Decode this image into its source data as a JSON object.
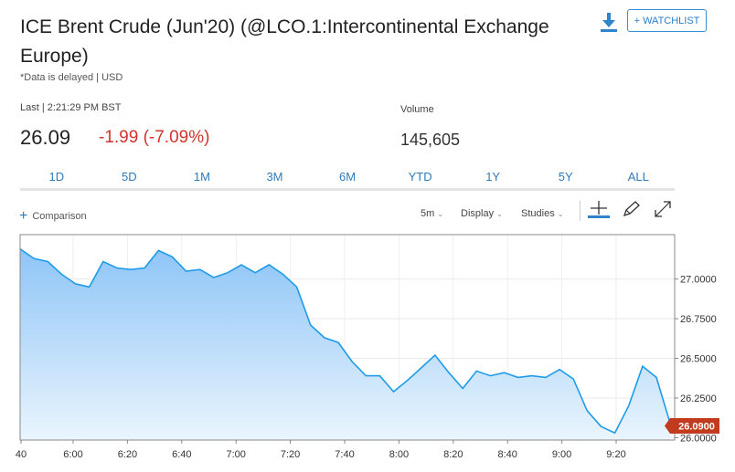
{
  "header": {
    "title": "ICE Brent Crude (Jun'20) (@LCO.1:Intercontinental Exchange Europe)",
    "delay_note": "*Data is delayed | USD",
    "download_icon": "download-icon",
    "watchlist_label": "+ WATCHLIST"
  },
  "quote": {
    "last_label": "Last | 2:21:29 PM BST",
    "price": "26.09",
    "change": "-1.99 (-7.09%)",
    "volume_label": "Volume",
    "volume": "145,605"
  },
  "colors": {
    "accent": "#2f7ab8",
    "down": "#d0342c",
    "line": "#1f9be8",
    "badge": "#c23b1f"
  },
  "ranges": [
    "1D",
    "5D",
    "1M",
    "3M",
    "6M",
    "YTD",
    "1Y",
    "5Y",
    "ALL"
  ],
  "toolbar": {
    "comparison_label": "Comparison",
    "interval_label": "5m",
    "display_label": "Display",
    "studies_label": "Studies",
    "icons": [
      "crosshair-icon",
      "draw-pencil-icon",
      "fullscreen-icon"
    ]
  },
  "chart_data": {
    "type": "area",
    "x_ticks": [
      "40",
      "6:00",
      "6:20",
      "6:40",
      "7:00",
      "7:20",
      "7:40",
      "8:00",
      "8:20",
      "8:40",
      "9:00",
      "9:20"
    ],
    "y_ticks": [
      "27.0000",
      "26.7500",
      "26.5000",
      "26.2500",
      "26.0000"
    ],
    "ylim": [
      25.985,
      27.28
    ],
    "y_axis_side": "right",
    "grid": true,
    "current_value_label": "26.0900",
    "series": [
      {
        "values": [
          27.19,
          27.13,
          27.11,
          27.03,
          26.97,
          26.95,
          27.11,
          27.07,
          27.06,
          27.07,
          27.18,
          27.14,
          27.05,
          27.06,
          27.01,
          27.04,
          27.09,
          27.04,
          27.09,
          27.03,
          26.95,
          26.71,
          26.63,
          26.6,
          26.48,
          26.39,
          26.39,
          26.29,
          26.36,
          26.44,
          26.52,
          26.41,
          26.31,
          26.42,
          26.39,
          26.41,
          26.38,
          26.39,
          26.38,
          26.43,
          26.37,
          26.17,
          26.07,
          26.03,
          26.2,
          26.45,
          26.38,
          26.09
        ]
      }
    ]
  }
}
